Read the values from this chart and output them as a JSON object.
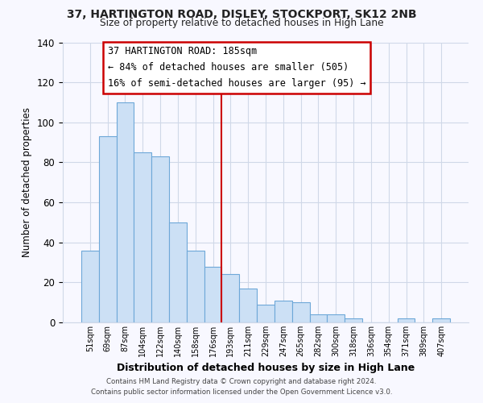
{
  "title": "37, HARTINGTON ROAD, DISLEY, STOCKPORT, SK12 2NB",
  "subtitle": "Size of property relative to detached houses in High Lane",
  "xlabel": "Distribution of detached houses by size in High Lane",
  "ylabel": "Number of detached properties",
  "bar_labels": [
    "51sqm",
    "69sqm",
    "87sqm",
    "104sqm",
    "122sqm",
    "140sqm",
    "158sqm",
    "176sqm",
    "193sqm",
    "211sqm",
    "229sqm",
    "247sqm",
    "265sqm",
    "282sqm",
    "300sqm",
    "318sqm",
    "336sqm",
    "354sqm",
    "371sqm",
    "389sqm",
    "407sqm"
  ],
  "bar_values": [
    36,
    93,
    110,
    85,
    83,
    50,
    36,
    28,
    24,
    17,
    9,
    11,
    10,
    4,
    4,
    2,
    0,
    0,
    2,
    0,
    2
  ],
  "bar_color": "#cce0f5",
  "bar_edge_color": "#6ea8d8",
  "vline_color": "#cc0000",
  "annotation_title": "37 HARTINGTON ROAD: 185sqm",
  "annotation_line1": "← 84% of detached houses are smaller (505)",
  "annotation_line2": "16% of semi-detached houses are larger (95) →",
  "annotation_box_color": "#cc0000",
  "annotation_bg": "#ffffff",
  "ylim": [
    0,
    140
  ],
  "yticks": [
    0,
    20,
    40,
    60,
    80,
    100,
    120,
    140
  ],
  "footer1": "Contains HM Land Registry data © Crown copyright and database right 2024.",
  "footer2": "Contains public sector information licensed under the Open Government Licence v3.0.",
  "bg_color": "#f8f8ff",
  "grid_color": "#d0d8e8"
}
